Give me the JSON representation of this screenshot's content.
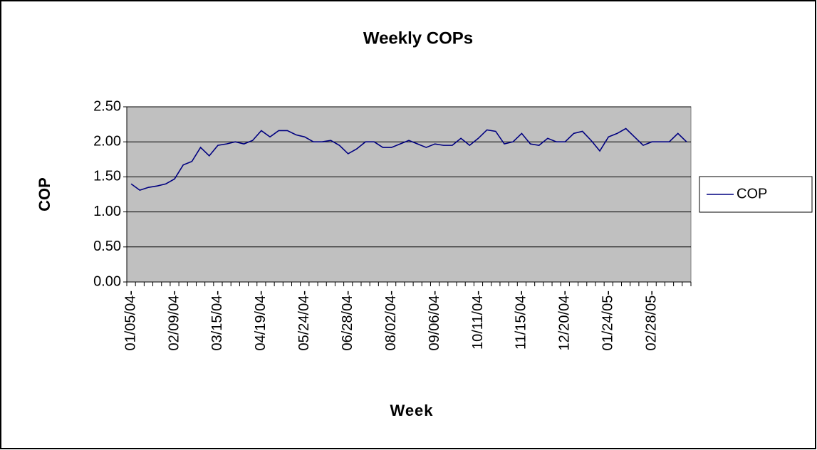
{
  "chart_data": {
    "type": "line",
    "title": "Weekly COPs",
    "x_label": "Week",
    "y_label": "COP",
    "categories": [
      "01/05/04-",
      null,
      null,
      null,
      null,
      "02/09/04-",
      null,
      null,
      null,
      null,
      "03/15/04-",
      null,
      null,
      null,
      null,
      "04/19/04-",
      null,
      null,
      null,
      null,
      "05/24/04-",
      null,
      null,
      null,
      null,
      "06/28/04-",
      null,
      null,
      null,
      null,
      "08/02/04-",
      null,
      null,
      null,
      null,
      "09/06/04-",
      null,
      null,
      null,
      null,
      "10/11/04-",
      null,
      null,
      null,
      null,
      "11/15/04-",
      null,
      null,
      null,
      null,
      "12/20/04-",
      null,
      null,
      null,
      null,
      "01/24/05-",
      null,
      null,
      null,
      null,
      "02/28/05-",
      null,
      null,
      null,
      null
    ],
    "series": [
      {
        "name": "COP",
        "color": "#000080",
        "values": [
          1.4,
          1.31,
          1.35,
          1.37,
          1.4,
          1.47,
          1.67,
          1.72,
          1.92,
          1.8,
          1.95,
          1.97,
          2.0,
          1.97,
          2.02,
          2.16,
          2.07,
          2.16,
          2.16,
          2.1,
          2.07,
          2.0,
          2.0,
          2.02,
          1.95,
          1.83,
          1.9,
          2.0,
          2.0,
          1.92,
          1.92,
          1.97,
          2.02,
          1.97,
          1.92,
          1.97,
          1.95,
          1.95,
          2.05,
          1.95,
          2.05,
          2.17,
          2.15,
          1.97,
          2.0,
          2.12,
          1.97,
          1.95,
          2.05,
          2.0,
          2.0,
          2.12,
          2.15,
          2.02,
          1.87,
          2.07,
          2.12,
          2.19,
          2.07,
          1.95,
          2.0,
          2.0,
          2.0,
          2.12,
          2.0
        ]
      }
    ],
    "ylim": [
      0,
      2.5
    ],
    "yticks": [
      {
        "value": 0,
        "label": "0.00"
      },
      {
        "value": 0.5,
        "label": "0.50"
      },
      {
        "value": 1,
        "label": "1.00"
      },
      {
        "value": 1.5,
        "label": "1.50"
      },
      {
        "value": 2,
        "label": "2.00"
      },
      {
        "value": 2.5,
        "label": "2.50"
      }
    ],
    "grid": true,
    "plot_background": "#c0c0c0",
    "legend": "right"
  }
}
